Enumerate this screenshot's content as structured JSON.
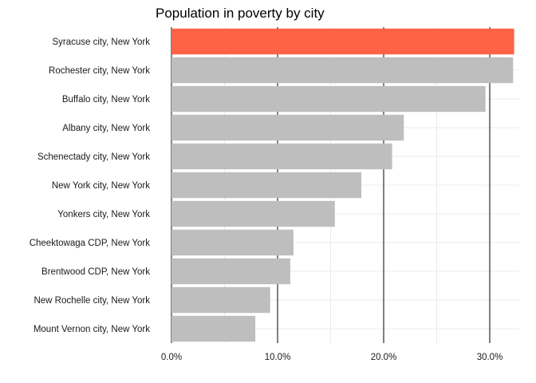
{
  "chart_data": {
    "type": "bar",
    "orientation": "horizontal",
    "title": "Population in poverty by city",
    "xlabel": "",
    "ylabel": "",
    "categories": [
      "Syracuse city, New York",
      "Rochester city, New York",
      "Buffalo city, New York",
      "Albany city, New York",
      "Schenectady city, New York",
      "New York city, New York",
      "Yonkers city, New York",
      "Cheektowaga CDP, New York",
      "Brentwood CDP, New York",
      "New Rochelle city, New York",
      "Mount Vernon city, New York"
    ],
    "values": [
      32.3,
      32.2,
      29.6,
      21.9,
      20.8,
      17.9,
      15.4,
      11.5,
      11.2,
      9.3,
      7.9
    ],
    "highlight_index": 0,
    "xlim": [
      0,
      33
    ],
    "x_ticks": [
      0,
      10,
      20,
      30
    ],
    "x_tick_labels": [
      "0.0%",
      "10.0%",
      "20.0%",
      "30.0%"
    ],
    "colors": {
      "highlight": "#FF6347",
      "bar": "#BEBEBE",
      "major_grid": "#000000",
      "minor_grid": "#EBEBEB"
    },
    "grid": true,
    "legend": "none"
  }
}
